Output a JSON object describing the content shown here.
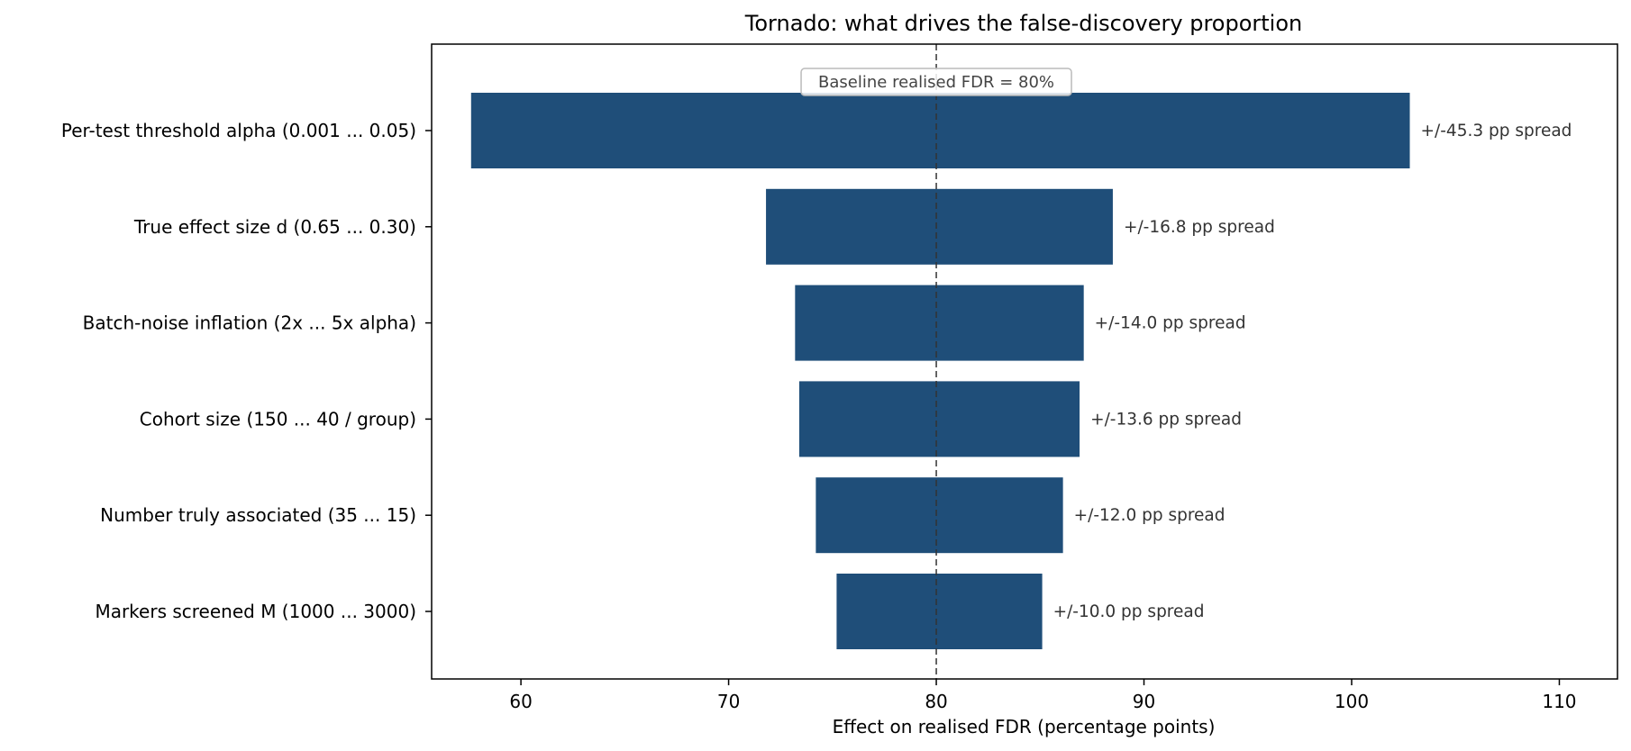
{
  "chart_data": {
    "type": "bar",
    "orientation": "horizontal",
    "title": "Tornado: what drives the false-discovery proportion",
    "xlabel": "Effect on realised FDR  (percentage points)",
    "ylabel": "",
    "xlim": [
      55.7,
      112.8
    ],
    "xticks": [
      60,
      70,
      80,
      90,
      100,
      110
    ],
    "baseline": 80,
    "baseline_label": "Baseline realised FDR = 80%",
    "grid": false,
    "bar_color": "#1f4e79",
    "categories": [
      "Per-test threshold alpha  (0.001 ... 0.05)",
      "True effect size d  (0.65 ... 0.30)",
      "Batch-noise inflation  (2x ... 5x alpha)",
      "Cohort size  (150 ... 40 / group)",
      "Number truly associated  (35 ... 15)",
      "Markers screened M  (1000 ... 3000)"
    ],
    "low": [
      57.6,
      71.8,
      73.2,
      73.4,
      74.2,
      75.2
    ],
    "high": [
      102.8,
      88.5,
      87.1,
      86.9,
      86.1,
      85.1
    ],
    "labels": [
      "+/-45.3 pp spread",
      "+/-16.8 pp spread",
      "+/-14.0 pp spread",
      "+/-13.6 pp spread",
      "+/-12.0 pp spread",
      "+/-10.0 pp spread"
    ]
  }
}
